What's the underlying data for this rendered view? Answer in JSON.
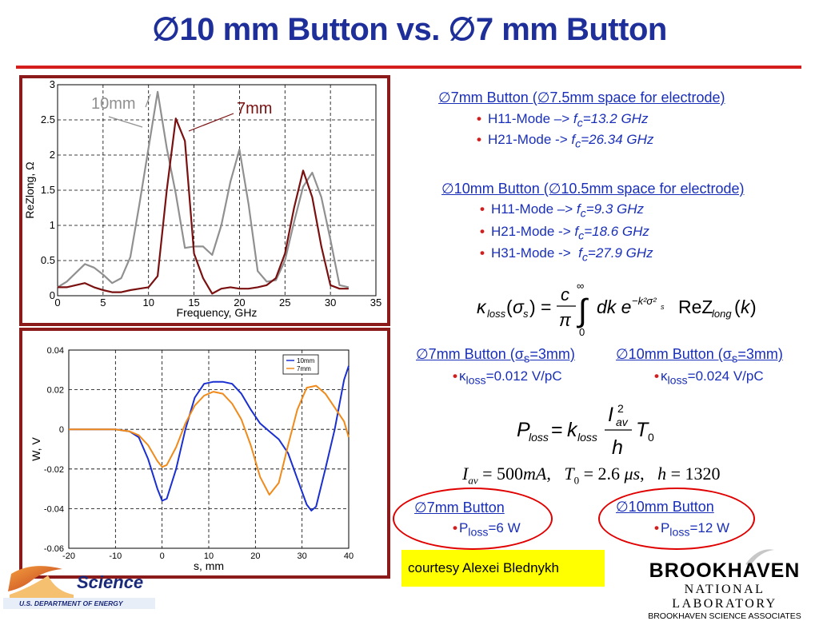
{
  "title": "∅10 mm Button vs. ∅7 mm Button",
  "colors": {
    "title": "#1f2f9a",
    "rule": "#d41e1e",
    "frame": "#8b1a1a",
    "text_blue": "#1a2fb8",
    "bullet": "#d41e1e",
    "highlight": "#ffff00"
  },
  "chart_data": [
    {
      "type": "line",
      "xlabel": "Frequency, GHz",
      "ylabel": "ReZlong, Ω",
      "xlim": [
        0,
        35
      ],
      "ylim": [
        0,
        3
      ],
      "x_ticks": [
        "0",
        "5",
        "10",
        "15",
        "20",
        "25",
        "30",
        "35"
      ],
      "y_ticks": [
        "0",
        "0.5",
        "1",
        "1.5",
        "2",
        "2.5",
        "3"
      ],
      "grid": true,
      "annotations": [
        "10mm",
        "7mm"
      ],
      "series": [
        {
          "name": "10mm",
          "color": "#909090",
          "x": [
            0,
            1,
            3,
            4,
            5,
            6,
            7,
            8,
            9,
            10,
            11,
            12,
            13,
            14,
            15,
            16,
            17,
            18,
            19,
            20,
            21,
            22,
            23,
            24,
            25,
            26,
            27,
            28,
            29,
            30,
            31,
            32
          ],
          "y": [
            0.12,
            0.2,
            0.45,
            0.4,
            0.3,
            0.18,
            0.25,
            0.55,
            1.3,
            2.1,
            2.9,
            2.1,
            1.45,
            0.68,
            0.7,
            0.7,
            0.58,
            1.0,
            1.62,
            2.08,
            1.3,
            0.35,
            0.2,
            0.22,
            0.5,
            1.05,
            1.55,
            1.75,
            1.4,
            0.8,
            0.15,
            0.12
          ]
        },
        {
          "name": "7mm",
          "color": "#7a1010",
          "x": [
            0,
            1,
            3,
            4,
            5,
            6,
            7,
            8,
            9,
            10,
            11,
            12,
            13,
            14,
            15,
            16,
            17,
            18,
            19,
            20,
            21,
            22,
            23,
            24,
            25,
            26,
            27,
            28,
            29,
            30,
            31,
            32
          ],
          "y": [
            0.12,
            0.12,
            0.18,
            0.12,
            0.08,
            0.05,
            0.05,
            0.08,
            0.1,
            0.12,
            0.28,
            1.5,
            2.52,
            2.2,
            0.6,
            0.25,
            0.03,
            0.1,
            0.12,
            0.1,
            0.1,
            0.12,
            0.15,
            0.25,
            0.6,
            1.25,
            1.78,
            1.4,
            0.7,
            0.15,
            0.1,
            0.1
          ]
        }
      ]
    },
    {
      "type": "line",
      "xlabel": "s, mm",
      "ylabel": "W, V",
      "xlim": [
        -20,
        40
      ],
      "ylim": [
        -0.06,
        0.04
      ],
      "x_ticks": [
        "-20",
        "-10",
        "0",
        "10",
        "20",
        "30",
        "40"
      ],
      "y_ticks": [
        "0.04",
        "0.02",
        "0",
        "-0.02",
        "-0.04",
        "-0.06"
      ],
      "grid": true,
      "legend": "top-right",
      "series": [
        {
          "name": "10mm",
          "color": "#1a2fd0",
          "x": [
            -20,
            -10,
            -7,
            -5,
            -3,
            -1,
            0,
            1,
            3,
            5,
            7,
            9,
            11,
            13,
            15,
            17,
            19,
            21,
            23,
            25,
            27,
            29,
            31,
            32,
            33,
            35,
            37,
            39,
            40
          ],
          "y": [
            0,
            0,
            -0.001,
            -0.004,
            -0.015,
            -0.03,
            -0.036,
            -0.035,
            -0.02,
            0.0,
            0.016,
            0.023,
            0.024,
            0.024,
            0.023,
            0.018,
            0.01,
            0.003,
            -0.001,
            -0.005,
            -0.012,
            -0.025,
            -0.038,
            -0.041,
            -0.039,
            -0.02,
            0.0,
            0.025,
            0.032
          ]
        },
        {
          "name": "7mm",
          "color": "#f08a1a",
          "x": [
            -20,
            -10,
            -7,
            -5,
            -3,
            -1,
            0,
            1,
            3,
            5,
            7,
            9,
            11,
            13,
            15,
            17,
            19,
            21,
            23,
            25,
            27,
            29,
            31,
            33,
            35,
            37,
            39,
            40
          ],
          "y": [
            0,
            0,
            -0.001,
            -0.003,
            -0.008,
            -0.016,
            -0.019,
            -0.018,
            -0.009,
            0.003,
            0.012,
            0.017,
            0.019,
            0.018,
            0.013,
            0.005,
            -0.008,
            -0.024,
            -0.033,
            -0.027,
            -0.008,
            0.01,
            0.021,
            0.022,
            0.018,
            0.011,
            0.004,
            -0.004
          ]
        }
      ]
    }
  ],
  "right": {
    "b7_heading": "∅7mm Button (∅7.5mm space for electrode)",
    "b7_h11": "H11-Mode –> fc=13.2 GHz",
    "b7_h21": "H21-Mode -> fc=26.34 GHz",
    "b10_heading": "∅10mm Button (∅10.5mm space for electrode)",
    "b10_h11": "H11-Mode –> fc=9.3 GHz",
    "b10_h21": "H21-Mode -> fc=18.6 GHz",
    "b10_h31": "H31-Mode ->  fc=27.9 GHz",
    "k7_heading": "∅7mm Button (σs=3mm)",
    "k7_value": "κloss=0.012 V/pC",
    "k10_heading": "∅10mm Button (σs=3mm)",
    "k10_value": "κloss=0.024 V/pC",
    "eq_params": "Iav = 500mA,  T0 = 2.6 μs,  h = 1320",
    "p7_heading": "∅7mm Button",
    "p7_value": "Ploss=6 W",
    "p10_heading": "∅10mm Button",
    "p10_value": "Ploss=12 W"
  },
  "courtesy": "courtesy Alexei Blednykh",
  "footer": {
    "doe_word": "Science",
    "doe_dept": "U.S. DEPARTMENT OF ENERGY",
    "bnl_name": "BROOKHAVEN",
    "bnl_lab": "NATIONAL LABORATORY",
    "bnl_assoc": "BROOKHAVEN SCIENCE ASSOCIATES"
  }
}
